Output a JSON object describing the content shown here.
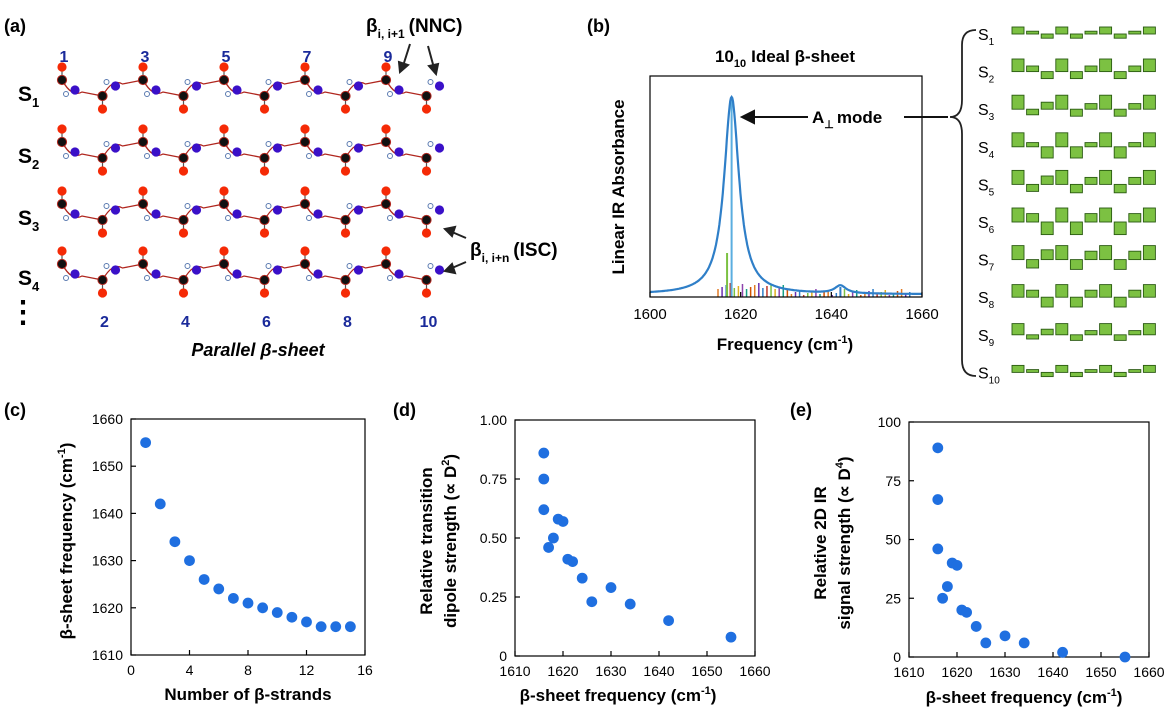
{
  "colors": {
    "point_blue": "#1f6fe0",
    "curve_blue": "#2f7fc8",
    "mode_green": "#7cc142",
    "oxygen_red": "#f52a06",
    "carbon_black": "#111111",
    "nitrogen_blue": "#3a10c8",
    "backbone_red": "#b0261e",
    "label_blue": "#1a2a9a"
  },
  "panel_a": {
    "label": "(a)",
    "caption": "Parallel β-sheet",
    "strands": [
      {
        "base": "S",
        "sub": "1"
      },
      {
        "base": "S",
        "sub": "2"
      },
      {
        "base": "S",
        "sub": "3"
      },
      {
        "base": "S",
        "sub": "4"
      }
    ],
    "ellipsis": "⋮",
    "top_numbers": [
      "1",
      "3",
      "5",
      "7",
      "9"
    ],
    "bottom_numbers": [
      "2",
      "4",
      "6",
      "8",
      "10"
    ],
    "nnc": {
      "base": "β",
      "sub": "i, i+1",
      "tag": "(NNC)"
    },
    "isc": {
      "base": "β",
      "sub": "i, i+n",
      "tag": "(ISC)"
    }
  },
  "panel_b": {
    "label": "(b)",
    "title_pre": "10",
    "title_sub": "10",
    "title_post": "Ideal β-sheet",
    "ylabel": "Linear IR Absorbance",
    "xlabel": "Frequency (cm",
    "xlabel_sup": "-1",
    "xlabel_end": ")",
    "xticks": [
      "1600",
      "1620",
      "1640",
      "1660"
    ],
    "mode_base": "A",
    "mode_sub": "⊥",
    "mode_post": "mode",
    "strand_labels": [
      {
        "base": "S",
        "sub": "1"
      },
      {
        "base": "S",
        "sub": "2"
      },
      {
        "base": "S",
        "sub": "3"
      },
      {
        "base": "S",
        "sub": "4"
      },
      {
        "base": "S",
        "sub": "5"
      },
      {
        "base": "S",
        "sub": "6"
      },
      {
        "base": "S",
        "sub": "7"
      },
      {
        "base": "S",
        "sub": "8"
      },
      {
        "base": "S",
        "sub": "9"
      },
      {
        "base": "S",
        "sub": "10"
      }
    ]
  },
  "chart_data": [
    {
      "type": "line",
      "panel": "b",
      "x_range": [
        1600,
        1660
      ],
      "peaks": [
        {
          "center": 1618,
          "height": 1.0,
          "width": 2.0
        },
        {
          "center": 1642,
          "height": 0.04,
          "width": 1.5
        }
      ],
      "stick_modes": [
        {
          "x": 1618,
          "height": 1.0,
          "color": "#5aaee0"
        },
        {
          "x": 1617,
          "height": 0.22,
          "color": "#7cc142"
        },
        {
          "x": 1642,
          "height": 0.05,
          "color": "#2f7fc8"
        }
      ],
      "minor_sticks_range": [
        1615,
        1658
      ]
    },
    {
      "type": "scatter",
      "panel": "c",
      "label": "(c)",
      "xlabel": "Number of β-strands",
      "ylabel": "β-sheet frequency (cm",
      "ylabel_sup": "-1",
      "ylabel_end": ")",
      "xlim": [
        0,
        16
      ],
      "ylim": [
        1610,
        1660
      ],
      "xticks": [
        "0",
        "4",
        "8",
        "12",
        "16"
      ],
      "yticks": [
        "1610",
        "1620",
        "1630",
        "1640",
        "1650",
        "1660"
      ],
      "x": [
        1,
        2,
        3,
        4,
        5,
        6,
        7,
        8,
        9,
        10,
        11,
        12,
        13,
        14,
        15
      ],
      "y": [
        1655,
        1642,
        1634,
        1630,
        1626,
        1624,
        1622,
        1621,
        1620,
        1619,
        1618,
        1617,
        1616,
        1616,
        1616
      ]
    },
    {
      "type": "scatter",
      "panel": "d",
      "label": "(d)",
      "xlabel": "β-sheet frequency (cm",
      "xlabel_sup": "-1",
      "xlabel_end": ")",
      "ylabel_line1": "Relative transition",
      "ylabel_line2": "dipole strength (∝ D",
      "ylabel_sup": "2",
      "ylabel_end": ")",
      "xlim": [
        1610,
        1660
      ],
      "ylim": [
        0,
        1
      ],
      "xticks": [
        "1610",
        "1620",
        "1630",
        "1640",
        "1650",
        "1660"
      ],
      "yticks": [
        "0",
        "0.25",
        "0.50",
        "0.75",
        "1.00"
      ],
      "x": [
        1616,
        1616,
        1616,
        1617,
        1618,
        1619,
        1620,
        1621,
        1622,
        1624,
        1626,
        1630,
        1634,
        1642,
        1655
      ],
      "y": [
        0.86,
        0.75,
        0.62,
        0.46,
        0.5,
        0.58,
        0.57,
        0.41,
        0.4,
        0.33,
        0.23,
        0.29,
        0.22,
        0.15,
        0.08
      ]
    },
    {
      "type": "scatter",
      "panel": "e",
      "label": "(e)",
      "xlabel": "β-sheet frequency (cm",
      "xlabel_sup": "-1",
      "xlabel_end": ")",
      "ylabel_line1": "Relative 2D IR",
      "ylabel_line2": "signal strength (∝ D",
      "ylabel_sup": "4",
      "ylabel_end": ")",
      "xlim": [
        1610,
        1660
      ],
      "ylim": [
        0,
        100
      ],
      "xticks": [
        "1610",
        "1620",
        "1630",
        "1640",
        "1650",
        "1660"
      ],
      "yticks": [
        "0",
        "25",
        "50",
        "75",
        "100"
      ],
      "x": [
        1616,
        1616,
        1616,
        1617,
        1618,
        1619,
        1620,
        1621,
        1622,
        1624,
        1626,
        1630,
        1634,
        1642,
        1655
      ],
      "y": [
        89,
        67,
        46,
        25,
        30,
        40,
        39,
        20,
        19,
        13,
        6,
        9,
        6,
        2,
        0
      ]
    }
  ],
  "mode_patterns": [
    [
      0.5,
      0.2,
      -0.3,
      0.5,
      -0.3,
      0.2,
      0.5,
      -0.3,
      0.2,
      0.5
    ],
    [
      0.9,
      0.4,
      -0.5,
      0.9,
      -0.5,
      0.4,
      0.9,
      -0.5,
      0.4,
      0.9
    ],
    [
      1.0,
      -0.4,
      0.5,
      1.0,
      -0.5,
      0.4,
      1.0,
      -0.5,
      0.4,
      1.0
    ],
    [
      1.0,
      0.3,
      -0.8,
      1.0,
      -0.8,
      0.3,
      1.0,
      -0.8,
      0.3,
      1.0
    ],
    [
      1.0,
      -0.5,
      0.6,
      1.0,
      -0.6,
      0.5,
      1.0,
      -0.6,
      0.5,
      1.0
    ],
    [
      1.0,
      0.6,
      -0.9,
      1.0,
      -0.9,
      0.6,
      1.0,
      -0.9,
      0.6,
      1.0
    ],
    [
      1.0,
      -0.6,
      0.7,
      1.0,
      -0.7,
      0.6,
      1.0,
      -0.7,
      0.6,
      1.0
    ],
    [
      0.9,
      0.5,
      -0.7,
      0.9,
      -0.7,
      0.5,
      0.9,
      -0.7,
      0.5,
      0.9
    ],
    [
      0.8,
      -0.3,
      0.4,
      0.8,
      -0.4,
      0.3,
      0.8,
      -0.4,
      0.3,
      0.8
    ],
    [
      0.5,
      0.2,
      -0.3,
      0.5,
      -0.3,
      0.2,
      0.5,
      -0.3,
      0.2,
      0.5
    ]
  ]
}
